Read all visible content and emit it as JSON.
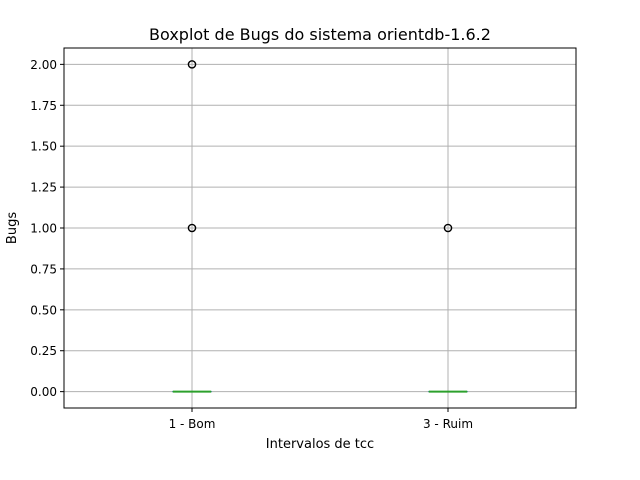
{
  "chart_data": {
    "type": "box",
    "title": "Boxplot de Bugs do sistema orientdb-1.6.2",
    "xlabel": "Intervalos de tcc",
    "ylabel": "Bugs",
    "ylim": [
      -0.1,
      2.1
    ],
    "yticks": [
      0.0,
      0.25,
      0.5,
      0.75,
      1.0,
      1.25,
      1.5,
      1.75,
      2.0
    ],
    "ytick_labels": [
      "0.00",
      "0.25",
      "0.50",
      "0.75",
      "1.00",
      "1.25",
      "1.50",
      "1.75",
      "2.00"
    ],
    "grid": true,
    "categories": [
      "1 - Bom",
      "3 - Ruim"
    ],
    "boxes": [
      {
        "category": "1 - Bom",
        "min": 0.0,
        "q1": 0.0,
        "median": 0.0,
        "q3": 0.0,
        "max": 0.0,
        "outliers": [
          1.0,
          2.0
        ]
      },
      {
        "category": "3 - Ruim",
        "min": 0.0,
        "q1": 0.0,
        "median": 0.0,
        "q3": 0.0,
        "max": 0.0,
        "outliers": [
          1.0
        ]
      }
    ],
    "colors": {
      "box": "#1f77b4",
      "median": "#2ca02c",
      "grid": "#b0b0b0",
      "axes": "#000000",
      "outlier": "#000000"
    }
  }
}
